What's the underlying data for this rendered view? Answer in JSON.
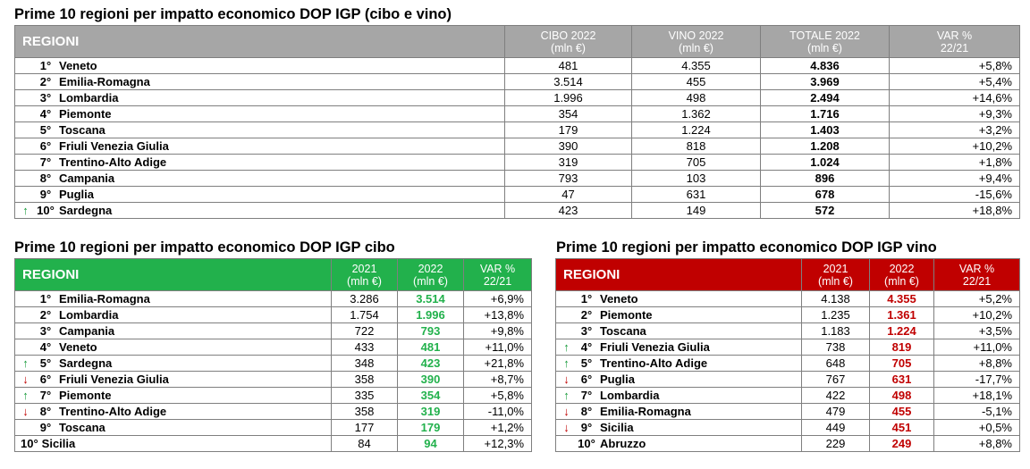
{
  "top": {
    "title": "Prime 10 regioni per impatto economico DOP IGP (cibo e vino)",
    "headers": {
      "region": "REGIONI",
      "c1": [
        "CIBO 2022",
        "(mln €)"
      ],
      "c2": [
        "VINO 2022",
        "(mln €)"
      ],
      "c3": [
        "TOTALE 2022",
        "(mln €)"
      ],
      "c4": [
        "VAR %",
        "22/21"
      ]
    },
    "rows": [
      {
        "arrow": "",
        "rank": "1°",
        "name": "Veneto",
        "v1": "481",
        "v2": "4.355",
        "v3": "4.836",
        "v4": "+5,8%"
      },
      {
        "arrow": "",
        "rank": "2°",
        "name": "Emilia-Romagna",
        "v1": "3.514",
        "v2": "455",
        "v3": "3.969",
        "v4": "+5,4%"
      },
      {
        "arrow": "",
        "rank": "3°",
        "name": "Lombardia",
        "v1": "1.996",
        "v2": "498",
        "v3": "2.494",
        "v4": "+14,6%"
      },
      {
        "arrow": "",
        "rank": "4°",
        "name": "Piemonte",
        "v1": "354",
        "v2": "1.362",
        "v3": "1.716",
        "v4": "+9,3%"
      },
      {
        "arrow": "",
        "rank": "5°",
        "name": "Toscana",
        "v1": "179",
        "v2": "1.224",
        "v3": "1.403",
        "v4": "+3,2%"
      },
      {
        "arrow": "",
        "rank": "6°",
        "name": "Friuli Venezia Giulia",
        "v1": "390",
        "v2": "818",
        "v3": "1.208",
        "v4": "+10,2%"
      },
      {
        "arrow": "",
        "rank": "7°",
        "name": "Trentino-Alto Adige",
        "v1": "319",
        "v2": "705",
        "v3": "1.024",
        "v4": "+1,8%"
      },
      {
        "arrow": "",
        "rank": "8°",
        "name": "Campania",
        "v1": "793",
        "v2": "103",
        "v3": "896",
        "v4": "+9,4%"
      },
      {
        "arrow": "",
        "rank": "9°",
        "name": "Puglia",
        "v1": "47",
        "v2": "631",
        "v3": "678",
        "v4": "-15,6%"
      },
      {
        "arrow": "up",
        "rank": "10°",
        "name": "Sardegna",
        "v1": "423",
        "v2": "149",
        "v3": "572",
        "v4": "+18,8%"
      }
    ]
  },
  "food": {
    "title": "Prime 10 regioni per impatto economico DOP IGP cibo",
    "headers": {
      "region": "REGIONI",
      "c1": [
        "2021",
        "(mln €)"
      ],
      "c2": [
        "2022",
        "(mln €)"
      ],
      "c3": [
        "VAR %",
        "22/21"
      ]
    },
    "rows": [
      {
        "arrow": "",
        "rank": "1°",
        "name": "Emilia-Romagna",
        "v1": "3.286",
        "v2": "3.514",
        "v3": "+6,9%"
      },
      {
        "arrow": "",
        "rank": "2°",
        "name": "Lombardia",
        "v1": "1.754",
        "v2": "1.996",
        "v3": "+13,8%"
      },
      {
        "arrow": "",
        "rank": "3°",
        "name": "Campania",
        "v1": "722",
        "v2": "793",
        "v3": "+9,8%"
      },
      {
        "arrow": "",
        "rank": "4°",
        "name": "Veneto",
        "v1": "433",
        "v2": "481",
        "v3": "+11,0%"
      },
      {
        "arrow": "up",
        "rank": "5°",
        "name": "Sardegna",
        "v1": "348",
        "v2": "423",
        "v3": "+21,8%"
      },
      {
        "arrow": "down",
        "rank": "6°",
        "name": "Friuli Venezia Giulia",
        "v1": "358",
        "v2": "390",
        "v3": "+8,7%"
      },
      {
        "arrow": "up",
        "rank": "7°",
        "name": "Piemonte",
        "v1": "335",
        "v2": "354",
        "v3": "+5,8%"
      },
      {
        "arrow": "down",
        "rank": "8°",
        "name": "Trentino-Alto Adige",
        "v1": "358",
        "v2": "319",
        "v3": "-11,0%"
      },
      {
        "arrow": "",
        "rank": "9°",
        "name": "Toscana",
        "v1": "177",
        "v2": "179",
        "v3": "+1,2%"
      },
      {
        "arrow": "",
        "rank": "10°",
        "name": "Sicilia",
        "v1": "84",
        "v2": "94",
        "v3": "+12,3%"
      }
    ]
  },
  "wine": {
    "title": "Prime 10 regioni per impatto economico DOP IGP vino",
    "headers": {
      "region": "REGIONI",
      "c1": [
        "2021",
        "(mln €)"
      ],
      "c2": [
        "2022",
        "(mln €)"
      ],
      "c3": [
        "VAR %",
        "22/21"
      ]
    },
    "rows": [
      {
        "arrow": "",
        "rank": "1°",
        "name": "Veneto",
        "v1": "4.138",
        "v2": "4.355",
        "v3": "+5,2%"
      },
      {
        "arrow": "",
        "rank": "2°",
        "name": "Piemonte",
        "v1": "1.235",
        "v2": "1.361",
        "v3": "+10,2%"
      },
      {
        "arrow": "",
        "rank": "3°",
        "name": "Toscana",
        "v1": "1.183",
        "v2": "1.224",
        "v3": "+3,5%"
      },
      {
        "arrow": "up",
        "rank": "4°",
        "name": "Friuli Venezia Giulia",
        "v1": "738",
        "v2": "819",
        "v3": "+11,0%"
      },
      {
        "arrow": "up",
        "rank": "5°",
        "name": "Trentino-Alto Adige",
        "v1": "648",
        "v2": "705",
        "v3": "+8,8%"
      },
      {
        "arrow": "down",
        "rank": "6°",
        "name": "Puglia",
        "v1": "767",
        "v2": "631",
        "v3": "-17,7%"
      },
      {
        "arrow": "up",
        "rank": "7°",
        "name": "Lombardia",
        "v1": "422",
        "v2": "498",
        "v3": "+18,1%"
      },
      {
        "arrow": "down",
        "rank": "8°",
        "name": "Emilia-Romagna",
        "v1": "479",
        "v2": "455",
        "v3": "-5,1%"
      },
      {
        "arrow": "down",
        "rank": "9°",
        "name": "Sicilia",
        "v1": "449",
        "v2": "451",
        "v3": "+0,5%"
      },
      {
        "arrow": "",
        "rank": "10°",
        "name": "Abruzzo",
        "v1": "229",
        "v2": "249",
        "v3": "+8,8%"
      }
    ]
  },
  "colors": {
    "top_header": "#a6a6a6",
    "food_header": "#22b14c",
    "wine_header": "#c00000",
    "arrow_up": "#1a9b3c",
    "arrow_down": "#c00000"
  },
  "icons": {
    "up": "arrow-up-icon",
    "down": "arrow-down-icon"
  }
}
